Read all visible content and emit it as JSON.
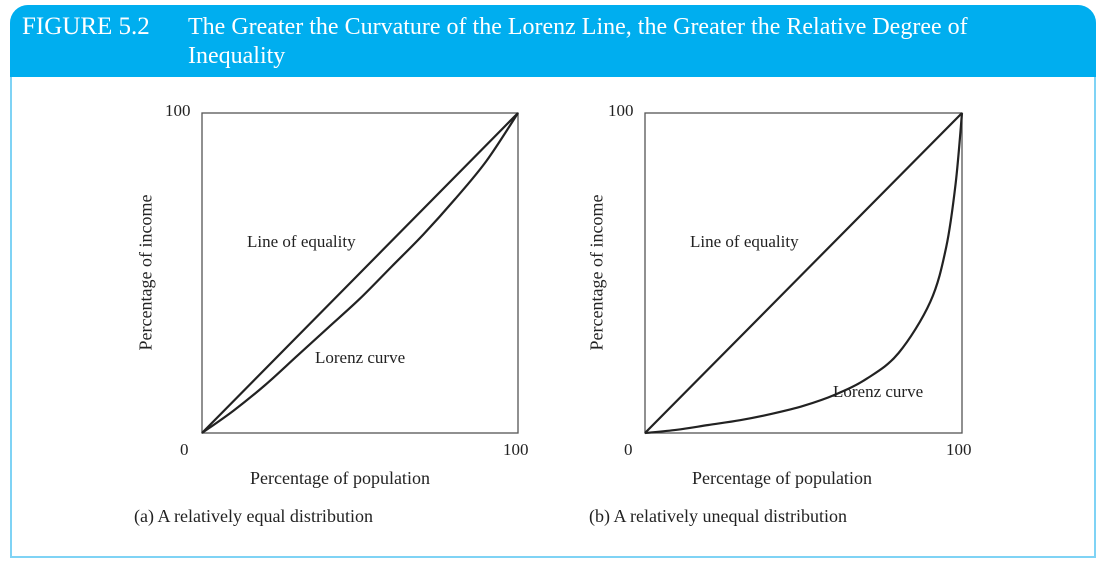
{
  "figure": {
    "number": "FIGURE 5.2",
    "title": "The Greater the Curvature of the Lorenz Line, the Greater the Relative Degree of Inequality",
    "header_color": "#00aeef",
    "border_color": "#7fd3f5"
  },
  "chart_data": [
    {
      "type": "line",
      "caption": "(a) A relatively equal distribution",
      "xlabel": "Percentage of population",
      "ylabel": "Percentage of income",
      "xlim": [
        0,
        100
      ],
      "ylim": [
        0,
        100
      ],
      "x_ticks": [
        "0",
        "100"
      ],
      "y_ticks": [
        "100"
      ],
      "grid": false,
      "series": [
        {
          "name": "Line of equality",
          "x": [
            0,
            100
          ],
          "y": [
            0,
            100
          ]
        },
        {
          "name": "Lorenz curve",
          "x": [
            0,
            10,
            20,
            30,
            40,
            50,
            60,
            70,
            80,
            90,
            100
          ],
          "y": [
            0,
            7,
            15,
            24,
            33,
            42,
            52,
            62,
            73,
            85,
            100
          ]
        }
      ],
      "annotations": [
        "Line of equality",
        "Lorenz curve"
      ]
    },
    {
      "type": "line",
      "caption": "(b) A relatively unequal distribution",
      "xlabel": "Percentage of population",
      "ylabel": "Percentage of income",
      "xlim": [
        0,
        100
      ],
      "ylim": [
        0,
        100
      ],
      "x_ticks": [
        "0",
        "100"
      ],
      "y_ticks": [
        "100"
      ],
      "grid": false,
      "series": [
        {
          "name": "Line of equality",
          "x": [
            0,
            100
          ],
          "y": [
            0,
            100
          ]
        },
        {
          "name": "Lorenz curve",
          "x": [
            0,
            10,
            20,
            30,
            40,
            50,
            60,
            70,
            80,
            90,
            95,
            98,
            100
          ],
          "y": [
            0,
            1,
            2.5,
            4,
            6,
            8.5,
            12,
            17,
            25,
            41,
            58,
            78,
            100
          ]
        }
      ],
      "annotations": [
        "Line of equality",
        "Lorenz curve"
      ]
    }
  ]
}
